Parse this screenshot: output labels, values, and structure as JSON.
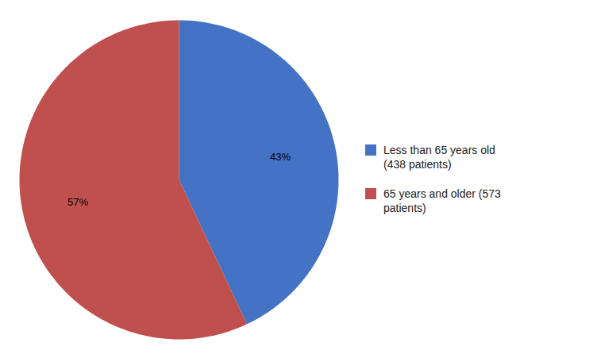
{
  "chart_data": {
    "type": "pie",
    "categories": [
      "Less than 65 years old\n(438 patients)",
      "65 years and older (573\npatients)"
    ],
    "values": [
      43,
      57
    ],
    "value_labels": [
      "43%",
      "57%"
    ],
    "colors": [
      "#4472C4",
      "#C0504D"
    ],
    "data_labels": true,
    "legend": "right"
  }
}
